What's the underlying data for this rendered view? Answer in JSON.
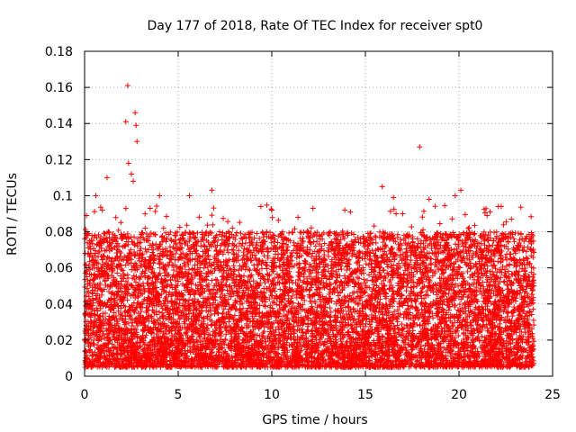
{
  "chart_data": {
    "type": "scatter",
    "title": "Day 177 of 2018, Rate Of TEC Index for receiver spt0",
    "xlabel": "GPS time / hours",
    "ylabel": "ROTI / TECUs",
    "xlim": [
      0,
      25
    ],
    "ylim": [
      0,
      0.18
    ],
    "xticks": [
      0,
      5,
      10,
      15,
      20,
      25
    ],
    "yticks": [
      0,
      0.02,
      0.04,
      0.06,
      0.08,
      0.1,
      0.12,
      0.14,
      0.16,
      0.18
    ],
    "xtick_labels": [
      "0",
      "5",
      "10",
      "15",
      "20",
      "25"
    ],
    "ytick_labels": [
      "0",
      "0.02",
      "0.04",
      "0.06",
      "0.08",
      "0.1",
      "0.12",
      "0.14",
      "0.16",
      "0.18"
    ],
    "grid": true,
    "marker": "+",
    "color": "#ff0000",
    "series": [
      {
        "name": "ROTI",
        "note": "dense band of points from 0 to 24 h, mostly 0.005-0.08 TECU/s",
        "density_profile": {
          "x_range": [
            0,
            24
          ],
          "typical_min": 0.005,
          "typical_max": 0.08
        },
        "points": [
          [
            2.3,
            0.161
          ],
          [
            2.2,
            0.141
          ],
          [
            2.7,
            0.146
          ],
          [
            2.75,
            0.139
          ],
          [
            2.8,
            0.13
          ],
          [
            17.9,
            0.127
          ],
          [
            2.35,
            0.118
          ],
          [
            2.5,
            0.112
          ],
          [
            1.2,
            0.11
          ],
          [
            2.6,
            0.108
          ],
          [
            20.1,
            0.103
          ],
          [
            0.6,
            0.1
          ],
          [
            5.6,
            0.1
          ],
          [
            6.8,
            0.103
          ],
          [
            4.0,
            0.1
          ],
          [
            15.9,
            0.105
          ],
          [
            16.5,
            0.099
          ],
          [
            19.8,
            0.1
          ],
          [
            0.1,
            0.089
          ],
          [
            10.0,
            0.092
          ],
          [
            12.2,
            0.093
          ],
          [
            13.9,
            0.092
          ],
          [
            14.2,
            0.091
          ],
          [
            18.4,
            0.098
          ],
          [
            21.5,
            0.089
          ],
          [
            22.8,
            0.087
          ],
          [
            3.5,
            0.093
          ],
          [
            7.9,
            0.082
          ],
          [
            9.2,
            0.079
          ],
          [
            11.4,
            0.088
          ]
        ]
      }
    ]
  }
}
